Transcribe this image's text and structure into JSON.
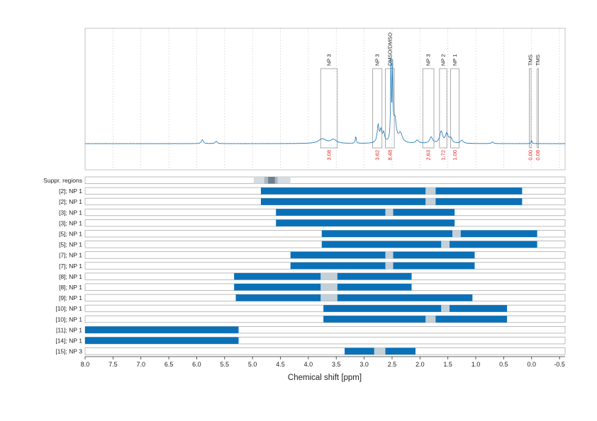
{
  "chart_data": {
    "type": "nmr-spectrum-with-range-bars",
    "xlabel": "Chemical shift [ppm]",
    "xlim": [
      8.0,
      -0.6
    ],
    "x_ticks": [
      "8.0",
      "7.5",
      "7.0",
      "6.5",
      "6.0",
      "5.5",
      "5.0",
      "4.5",
      "4.0",
      "3.5",
      "3.0",
      "2.5",
      "2.0",
      "1.5",
      "1.0",
      "0.5",
      "0.0",
      "-0.5"
    ],
    "grid": "vertical dotted",
    "colors": {
      "spectrum": "#1f77b4",
      "bar": "#0a71b8",
      "gap": "#c3d0d8",
      "integral": "#e8281e",
      "suppr_light": "#d5dce1",
      "suppr_mid": "#a9b7c1",
      "suppr_dark": "#6d7f8c",
      "box": "#888888"
    },
    "spectrum": {
      "peaks": [
        {
          "ppm": 5.9,
          "height": 0.05,
          "width": 0.02
        },
        {
          "ppm": 5.65,
          "height": 0.03,
          "width": 0.02
        },
        {
          "ppm": 3.75,
          "height": 0.06,
          "width": 0.08
        },
        {
          "ppm": 3.55,
          "height": 0.05,
          "width": 0.06
        },
        {
          "ppm": 3.15,
          "height": 0.09,
          "width": 0.01
        },
        {
          "ppm": 2.75,
          "height": 0.22,
          "width": 0.02
        },
        {
          "ppm": 2.7,
          "height": 0.15,
          "width": 0.02
        },
        {
          "ppm": 2.65,
          "height": 0.12,
          "width": 0.02
        },
        {
          "ppm": 2.52,
          "height": 1.0,
          "width": 0.008
        },
        {
          "ppm": 2.49,
          "height": 0.9,
          "width": 0.008
        },
        {
          "ppm": 2.45,
          "height": 0.3,
          "width": 0.03
        },
        {
          "ppm": 2.35,
          "height": 0.12,
          "width": 0.04
        },
        {
          "ppm": 2.05,
          "height": 0.04,
          "width": 0.03
        },
        {
          "ppm": 1.8,
          "height": 0.08,
          "width": 0.03
        },
        {
          "ppm": 1.62,
          "height": 0.15,
          "width": 0.03
        },
        {
          "ppm": 1.52,
          "height": 0.12,
          "width": 0.03
        },
        {
          "ppm": 1.45,
          "height": 0.06,
          "width": 0.03
        },
        {
          "ppm": 1.25,
          "height": 0.04,
          "width": 0.03
        },
        {
          "ppm": 0.7,
          "height": 0.02,
          "width": 0.02
        },
        {
          "ppm": 0.0,
          "height": 0.04,
          "width": 0.01
        }
      ]
    },
    "annotations": [
      {
        "label": "NP 3",
        "from": 3.78,
        "to": 3.48,
        "value": "3.08"
      },
      {
        "label": "NP 3",
        "from": 2.85,
        "to": 2.68,
        "value": "3.62"
      },
      {
        "label": "DMSO/DMSO",
        "from": 2.62,
        "to": 2.46,
        "value": "8.48"
      },
      {
        "label": "NP 3",
        "from": 1.95,
        "to": 1.75,
        "value": "2.63"
      },
      {
        "label": "NP 2",
        "from": 1.65,
        "to": 1.52,
        "value": "1.72"
      },
      {
        "label": "NP 1",
        "from": 1.45,
        "to": 1.3,
        "value": "1.00"
      },
      {
        "label": "TMS",
        "from": 0.04,
        "to": 0.01,
        "value": "0.00"
      },
      {
        "label": "TMS",
        "from": -0.1,
        "to": -0.12,
        "value": "0.08"
      }
    ],
    "suppression": {
      "label": "Suppr. regions",
      "light": [
        4.98,
        4.32
      ],
      "mid": [
        4.79,
        4.55
      ],
      "dark": [
        4.72,
        4.6
      ]
    },
    "rows": [
      {
        "label": "[2]; NP 1",
        "segments": [
          [
            4.85,
            1.9
          ],
          [
            1.72,
            0.17
          ]
        ],
        "gap": [
          1.9,
          1.72
        ]
      },
      {
        "label": "[2]; NP 1",
        "segments": [
          [
            4.85,
            1.9
          ],
          [
            1.72,
            0.17
          ]
        ],
        "gap": [
          1.9,
          1.72
        ]
      },
      {
        "label": "[3]; NP 1",
        "segments": [
          [
            4.58,
            2.62
          ],
          [
            2.48,
            1.38
          ]
        ],
        "gap": [
          2.62,
          2.48
        ]
      },
      {
        "label": "[3]; NP 1",
        "segments": [
          [
            4.58,
            1.38
          ]
        ],
        "gap": null
      },
      {
        "label": "[5]; NP 1",
        "segments": [
          [
            3.76,
            1.42
          ],
          [
            1.27,
            -0.1
          ]
        ],
        "gap": [
          1.42,
          1.27
        ]
      },
      {
        "label": "[5]; NP 1",
        "segments": [
          [
            3.76,
            1.62
          ],
          [
            1.47,
            -0.1
          ]
        ],
        "gap": [
          1.62,
          1.47
        ]
      },
      {
        "label": "[7]; NP 1",
        "segments": [
          [
            4.32,
            2.62
          ],
          [
            2.48,
            1.02
          ]
        ],
        "gap": [
          2.62,
          2.48
        ]
      },
      {
        "label": "[7]; NP 1",
        "segments": [
          [
            4.32,
            2.62
          ],
          [
            2.48,
            1.02
          ]
        ],
        "gap": [
          2.62,
          2.48
        ]
      },
      {
        "label": "[8]; NP 1",
        "segments": [
          [
            5.33,
            3.78
          ],
          [
            3.48,
            2.15
          ]
        ],
        "gap": [
          3.78,
          3.48
        ]
      },
      {
        "label": "[8]; NP 1",
        "segments": [
          [
            5.33,
            3.78
          ],
          [
            3.48,
            2.15
          ]
        ],
        "gap": [
          3.78,
          3.48
        ]
      },
      {
        "label": "[9]; NP 1",
        "segments": [
          [
            5.3,
            3.78
          ],
          [
            3.48,
            1.06
          ]
        ],
        "gap": [
          3.78,
          3.48
        ]
      },
      {
        "label": "[10]; NP 1",
        "segments": [
          [
            3.73,
            1.62
          ],
          [
            1.47,
            0.44
          ]
        ],
        "gap": [
          1.62,
          1.47
        ]
      },
      {
        "label": "[10]; NP 1",
        "segments": [
          [
            3.73,
            1.9
          ],
          [
            1.72,
            0.44
          ]
        ],
        "gap": [
          1.9,
          1.72
        ]
      },
      {
        "label": "[11]; NP 1",
        "segments": [
          [
            8.0,
            5.25
          ]
        ],
        "gap": null
      },
      {
        "label": "[14]; NP 1",
        "segments": [
          [
            8.0,
            5.25
          ]
        ],
        "gap": null
      },
      {
        "label": "[15]; NP 3",
        "segments": [
          [
            3.35,
            2.82
          ],
          [
            2.62,
            2.08
          ]
        ],
        "gap": [
          2.82,
          2.62
        ]
      }
    ]
  }
}
